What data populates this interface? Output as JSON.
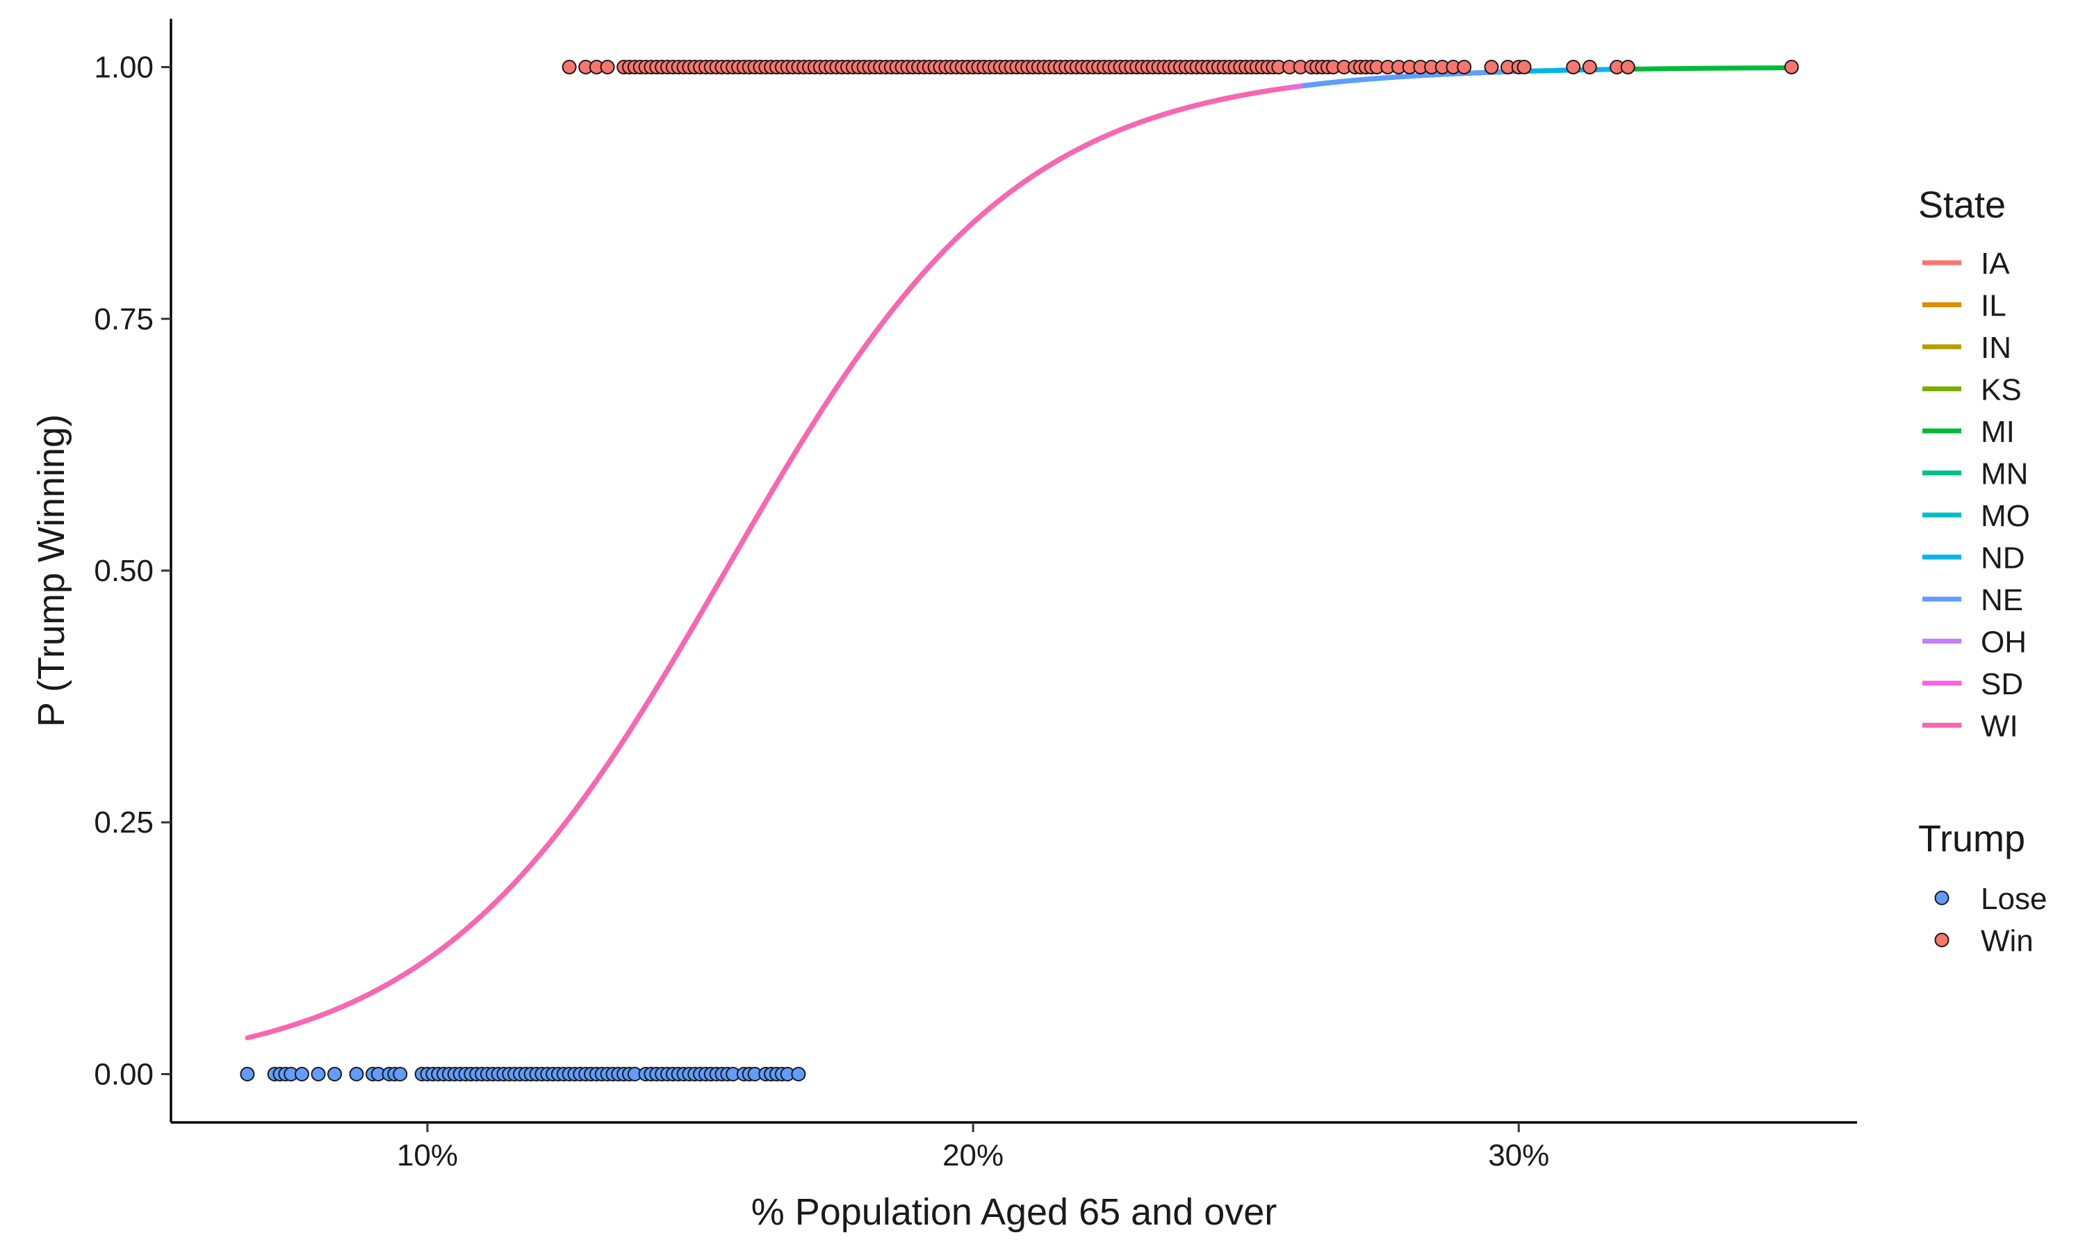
{
  "chart_data": {
    "type": "scatter",
    "xlabel": "% Population Aged 65 and over",
    "ylabel": "P (Trump Winning)",
    "xlim": [
      0.053,
      0.362
    ],
    "ylim": [
      -0.048,
      1.048
    ],
    "x_ticks": [
      {
        "value": 0.1,
        "label": "10%"
      },
      {
        "value": 0.2,
        "label": "20%"
      },
      {
        "value": 0.3,
        "label": "30%"
      }
    ],
    "y_ticks": [
      {
        "value": 0.0,
        "label": "0.00"
      },
      {
        "value": 0.25,
        "label": "0.25"
      },
      {
        "value": 0.5,
        "label": "0.50"
      },
      {
        "value": 0.75,
        "label": "0.75"
      },
      {
        "value": 1.0,
        "label": "1.00"
      }
    ],
    "grid": false,
    "curve_model": {
      "intercept": -5.8,
      "slope": 37.5
    },
    "state_legend": {
      "title": "State",
      "entries": [
        {
          "name": "IA",
          "color": "#F8766D"
        },
        {
          "name": "IL",
          "color": "#DE8C00"
        },
        {
          "name": "IN",
          "color": "#B79F00"
        },
        {
          "name": "KS",
          "color": "#7CAE00"
        },
        {
          "name": "MI",
          "color": "#00BA38"
        },
        {
          "name": "MN",
          "color": "#00C08B"
        },
        {
          "name": "MO",
          "color": "#00BFC4"
        },
        {
          "name": "ND",
          "color": "#00B4F0"
        },
        {
          "name": "NE",
          "color": "#619CFF"
        },
        {
          "name": "OH",
          "color": "#C77CFF"
        },
        {
          "name": "SD",
          "color": "#F564E3"
        },
        {
          "name": "WI",
          "color": "#FF64B0"
        }
      ]
    },
    "state_curve_ranges": [
      {
        "state": "IA",
        "x_min": 0.12,
        "x_max": 0.255
      },
      {
        "state": "IL",
        "x_min": 0.07,
        "x_max": 0.23
      },
      {
        "state": "IN",
        "x_min": 0.09,
        "x_max": 0.22
      },
      {
        "state": "KS",
        "x_min": 0.075,
        "x_max": 0.3
      },
      {
        "state": "MI",
        "x_min": 0.08,
        "x_max": 0.35
      },
      {
        "state": "MN",
        "x_min": 0.08,
        "x_max": 0.29
      },
      {
        "state": "MO",
        "x_min": 0.075,
        "x_max": 0.3
      },
      {
        "state": "ND",
        "x_min": 0.07,
        "x_max": 0.32
      },
      {
        "state": "NE",
        "x_min": 0.075,
        "x_max": 0.3
      },
      {
        "state": "OH",
        "x_min": 0.085,
        "x_max": 0.24
      },
      {
        "state": "SD",
        "x_min": 0.07,
        "x_max": 0.26
      },
      {
        "state": "WI",
        "x_min": 0.067,
        "x_max": 0.257
      }
    ],
    "trump_legend": {
      "title": "Trump",
      "entries": [
        {
          "name": "Lose",
          "color": "#619CFF"
        },
        {
          "name": "Win",
          "color": "#F8766D"
        }
      ]
    },
    "points": {
      "lose": {
        "y": 0,
        "x": [
          0.067,
          0.072,
          0.073,
          0.074,
          0.075,
          0.077,
          0.08,
          0.083,
          0.087,
          0.09,
          0.091,
          0.093,
          0.094,
          0.095,
          0.099,
          0.1,
          0.101,
          0.102,
          0.103,
          0.104,
          0.105,
          0.106,
          0.107,
          0.108,
          0.109,
          0.11,
          0.111,
          0.112,
          0.113,
          0.114,
          0.115,
          0.116,
          0.117,
          0.118,
          0.119,
          0.12,
          0.121,
          0.122,
          0.123,
          0.124,
          0.125,
          0.126,
          0.127,
          0.128,
          0.129,
          0.13,
          0.131,
          0.132,
          0.133,
          0.134,
          0.135,
          0.136,
          0.137,
          0.138,
          0.14,
          0.141,
          0.142,
          0.143,
          0.144,
          0.145,
          0.146,
          0.147,
          0.148,
          0.149,
          0.15,
          0.151,
          0.152,
          0.153,
          0.154,
          0.155,
          0.156,
          0.158,
          0.159,
          0.16,
          0.162,
          0.163,
          0.164,
          0.165,
          0.166,
          0.168
        ]
      },
      "win": {
        "y": 1,
        "x": [
          0.126,
          0.129,
          0.131,
          0.133,
          0.136,
          0.137,
          0.138,
          0.139,
          0.14,
          0.141,
          0.142,
          0.143,
          0.144,
          0.145,
          0.146,
          0.147,
          0.148,
          0.149,
          0.15,
          0.151,
          0.152,
          0.153,
          0.154,
          0.155,
          0.156,
          0.157,
          0.158,
          0.159,
          0.16,
          0.161,
          0.162,
          0.163,
          0.164,
          0.165,
          0.166,
          0.167,
          0.168,
          0.169,
          0.17,
          0.171,
          0.172,
          0.173,
          0.174,
          0.175,
          0.176,
          0.177,
          0.178,
          0.179,
          0.18,
          0.181,
          0.182,
          0.183,
          0.184,
          0.185,
          0.186,
          0.187,
          0.188,
          0.189,
          0.19,
          0.191,
          0.192,
          0.193,
          0.194,
          0.195,
          0.196,
          0.197,
          0.198,
          0.199,
          0.2,
          0.201,
          0.202,
          0.203,
          0.204,
          0.205,
          0.206,
          0.207,
          0.208,
          0.209,
          0.21,
          0.211,
          0.212,
          0.213,
          0.214,
          0.215,
          0.216,
          0.217,
          0.218,
          0.219,
          0.22,
          0.221,
          0.222,
          0.223,
          0.224,
          0.225,
          0.226,
          0.227,
          0.228,
          0.229,
          0.23,
          0.231,
          0.232,
          0.233,
          0.234,
          0.235,
          0.236,
          0.237,
          0.238,
          0.239,
          0.24,
          0.241,
          0.242,
          0.243,
          0.244,
          0.245,
          0.246,
          0.247,
          0.248,
          0.249,
          0.25,
          0.251,
          0.252,
          0.253,
          0.254,
          0.255,
          0.256,
          0.258,
          0.26,
          0.262,
          0.263,
          0.264,
          0.265,
          0.266,
          0.268,
          0.27,
          0.271,
          0.272,
          0.273,
          0.274,
          0.276,
          0.278,
          0.28,
          0.282,
          0.284,
          0.286,
          0.288,
          0.29,
          0.295,
          0.298,
          0.3,
          0.301,
          0.31,
          0.313,
          0.318,
          0.32,
          0.35
        ]
      }
    }
  }
}
